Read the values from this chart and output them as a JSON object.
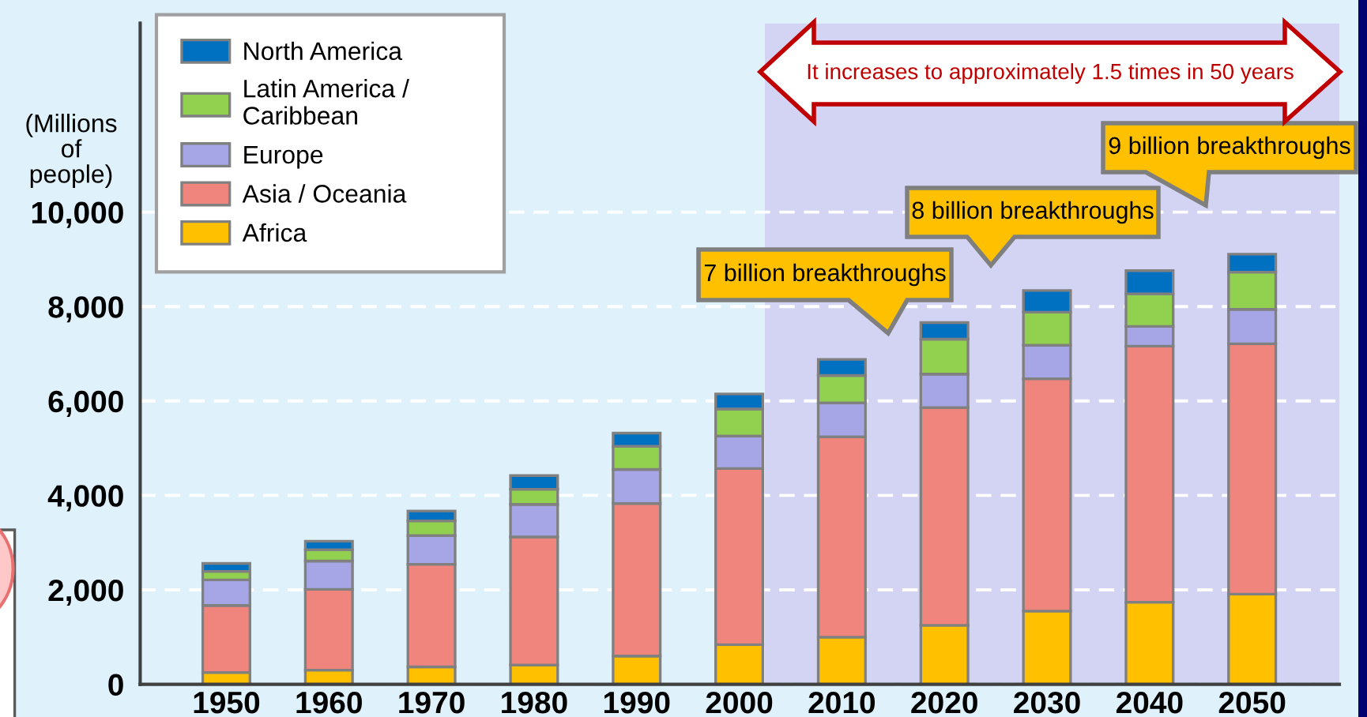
{
  "chart_data": {
    "type": "bar",
    "stacked": true,
    "x": [
      1950,
      1960,
      1970,
      1980,
      1990,
      2000,
      2010,
      2020,
      2030,
      2040,
      2050
    ],
    "xlim": [
      1941.6,
      2058.5
    ],
    "xticks": [
      1950,
      1960,
      1970,
      1980,
      1990,
      2000,
      2010,
      2020,
      2030,
      2040,
      2050
    ],
    "ylim": [
      0,
      14000
    ],
    "yticks": [
      0,
      {
        "value": 2000,
        "label": "2,000"
      },
      {
        "value": 4000,
        "label": "4,000"
      },
      {
        "value": 6000,
        "label": "6,000"
      },
      {
        "value": 8000,
        "label": "8,000"
      },
      {
        "value": 10000,
        "label": "10,000"
      }
    ],
    "ylabel": "(Millions\nof\npeople)",
    "series": [
      {
        "name": "Africa",
        "color": "#ffc000",
        "values": [
          250,
          300,
          370,
          410,
          600,
          840,
          1000,
          1250,
          1550,
          1740,
          1910
        ]
      },
      {
        "name": "Asia / Oceania",
        "color": "#f0857e",
        "values": [
          1420,
          1710,
          2170,
          2710,
          3230,
          3730,
          4240,
          4610,
          4920,
          5420,
          5300
        ]
      },
      {
        "name": "Europe",
        "color": "#a6a6e6",
        "values": [
          540,
          600,
          610,
          690,
          720,
          690,
          720,
          710,
          710,
          420,
          730
        ]
      },
      {
        "name": "Latin America /\nCaribbean",
        "color": "#92d050",
        "values": [
          180,
          240,
          310,
          320,
          490,
          570,
          580,
          740,
          700,
          690,
          790
        ]
      },
      {
        "name": "North America",
        "color": "#0070c0",
        "values": [
          170,
          180,
          210,
          290,
          280,
          320,
          340,
          350,
          460,
          490,
          380
        ]
      }
    ],
    "legend": "top left",
    "grid": "y",
    "bands": [
      {
        "axis": "x",
        "from": 2002.5,
        "to": 2058.5,
        "color": "#d3d3f3"
      }
    ],
    "annotations": [
      "It increases to approximately 1.5 times in 50 years",
      "7 billion breakthroughs",
      "8 billion breakthroughs",
      "9 billion breakthroughs"
    ]
  }
}
